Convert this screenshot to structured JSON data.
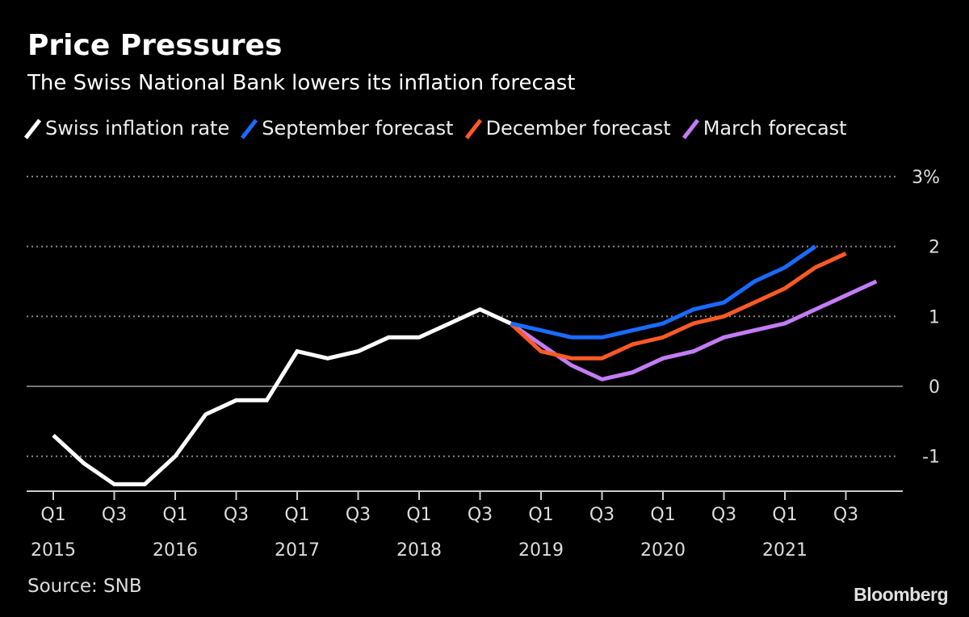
{
  "chart_data": {
    "type": "line",
    "title": "Price Pressures",
    "subtitle": "The Swiss National Bank lowers its inflation forecast",
    "xlabel": "",
    "ylabel": "",
    "ylim": [
      -1.5,
      3
    ],
    "yticks": [
      {
        "value": 3,
        "label": "3%"
      },
      {
        "value": 2,
        "label": "2"
      },
      {
        "value": 1,
        "label": "1"
      },
      {
        "value": 0,
        "label": "0"
      },
      {
        "value": -1,
        "label": "-1"
      }
    ],
    "grid": true,
    "legend_position": "top-left",
    "x_quarters": [
      "2015Q1",
      "2015Q2",
      "2015Q3",
      "2015Q4",
      "2016Q1",
      "2016Q2",
      "2016Q3",
      "2016Q4",
      "2017Q1",
      "2017Q2",
      "2017Q3",
      "2017Q4",
      "2018Q1",
      "2018Q2",
      "2018Q3",
      "2018Q4",
      "2019Q1",
      "2019Q2",
      "2019Q3",
      "2019Q4",
      "2020Q1",
      "2020Q2",
      "2020Q3",
      "2020Q4",
      "2021Q1",
      "2021Q2",
      "2021Q3",
      "2021Q4"
    ],
    "xticks": [
      {
        "index": 0,
        "q": "Q1",
        "year": "2015"
      },
      {
        "index": 2,
        "q": "Q3",
        "year": ""
      },
      {
        "index": 4,
        "q": "Q1",
        "year": "2016"
      },
      {
        "index": 6,
        "q": "Q3",
        "year": ""
      },
      {
        "index": 8,
        "q": "Q1",
        "year": "2017"
      },
      {
        "index": 10,
        "q": "Q3",
        "year": ""
      },
      {
        "index": 12,
        "q": "Q1",
        "year": "2018"
      },
      {
        "index": 14,
        "q": "Q3",
        "year": ""
      },
      {
        "index": 16,
        "q": "Q1",
        "year": "2019"
      },
      {
        "index": 18,
        "q": "Q3",
        "year": ""
      },
      {
        "index": 20,
        "q": "Q1",
        "year": "2020"
      },
      {
        "index": 22,
        "q": "Q3",
        "year": ""
      },
      {
        "index": 24,
        "q": "Q1",
        "year": "2021"
      },
      {
        "index": 26,
        "q": "Q3",
        "year": ""
      }
    ],
    "series": [
      {
        "name": "Swiss inflation rate",
        "color": "#ffffff",
        "start_index": 0,
        "values": [
          -0.7,
          -1.1,
          -1.4,
          -1.4,
          -1.0,
          -0.4,
          -0.2,
          -0.2,
          0.5,
          0.4,
          0.5,
          0.7,
          0.7,
          0.9,
          1.1,
          0.9
        ]
      },
      {
        "name": "September forecast",
        "color": "#1a6bff",
        "start_index": 15,
        "values": [
          0.9,
          0.8,
          0.7,
          0.7,
          0.8,
          0.9,
          1.1,
          1.2,
          1.5,
          1.7,
          2.0
        ]
      },
      {
        "name": "December forecast",
        "color": "#ff5a26",
        "start_index": 15,
        "values": [
          0.9,
          0.5,
          0.4,
          0.4,
          0.6,
          0.7,
          0.9,
          1.0,
          1.2,
          1.4,
          1.7,
          1.9
        ]
      },
      {
        "name": "March forecast",
        "color": "#c47cf5",
        "start_index": 15,
        "values": [
          0.9,
          0.6,
          0.3,
          0.1,
          0.2,
          0.4,
          0.5,
          0.7,
          0.8,
          0.9,
          1.1,
          1.3,
          1.5
        ]
      }
    ]
  },
  "footer": {
    "source": "Source: SNB",
    "brand": "Bloomberg"
  }
}
